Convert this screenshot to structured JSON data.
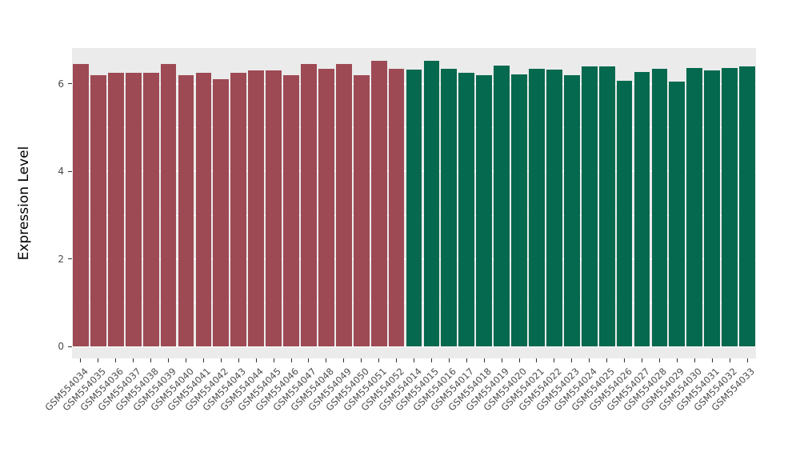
{
  "chart_data": {
    "type": "bar",
    "title": "",
    "xlabel": "",
    "ylabel": "Expression Level",
    "ylim": [
      -0.27,
      6.82
    ],
    "yticks": [
      0,
      2,
      4,
      6
    ],
    "minor_gridlines": [
      1,
      3,
      5
    ],
    "grid": true,
    "legend": "none",
    "panel_bg": "#EBEBEB",
    "gridline_color": "#FFFFFF",
    "series": [
      {
        "color": "#9D4A54",
        "categories": [
          "GSM554034",
          "GSM554035",
          "GSM554036",
          "GSM554037",
          "GSM554038",
          "GSM554039",
          "GSM554040",
          "GSM554041",
          "GSM554042",
          "GSM554043",
          "GSM554044",
          "GSM554045",
          "GSM554046",
          "GSM554047",
          "GSM554048",
          "GSM554049",
          "GSM554050",
          "GSM554051",
          "GSM554052"
        ],
        "values": [
          6.45,
          6.2,
          6.25,
          6.25,
          6.25,
          6.45,
          6.2,
          6.25,
          6.1,
          6.25,
          6.3,
          6.3,
          6.2,
          6.45,
          6.35,
          6.45,
          6.2,
          6.52,
          6.35
        ]
      },
      {
        "color": "#04694E",
        "categories": [
          "GSM554014",
          "GSM554015",
          "GSM554016",
          "GSM554017",
          "GSM554018",
          "GSM554019",
          "GSM554020",
          "GSM554021",
          "GSM554022",
          "GSM554023",
          "GSM554024",
          "GSM554025",
          "GSM554026",
          "GSM554027",
          "GSM554028",
          "GSM554029",
          "GSM554030",
          "GSM554031",
          "GSM554032",
          "GSM554033"
        ],
        "values": [
          6.32,
          6.52,
          6.35,
          6.25,
          6.2,
          6.42,
          6.22,
          6.35,
          6.32,
          6.2,
          6.4,
          6.4,
          6.08,
          6.27,
          6.35,
          6.05,
          6.37,
          6.3,
          6.37,
          6.4
        ]
      }
    ]
  }
}
